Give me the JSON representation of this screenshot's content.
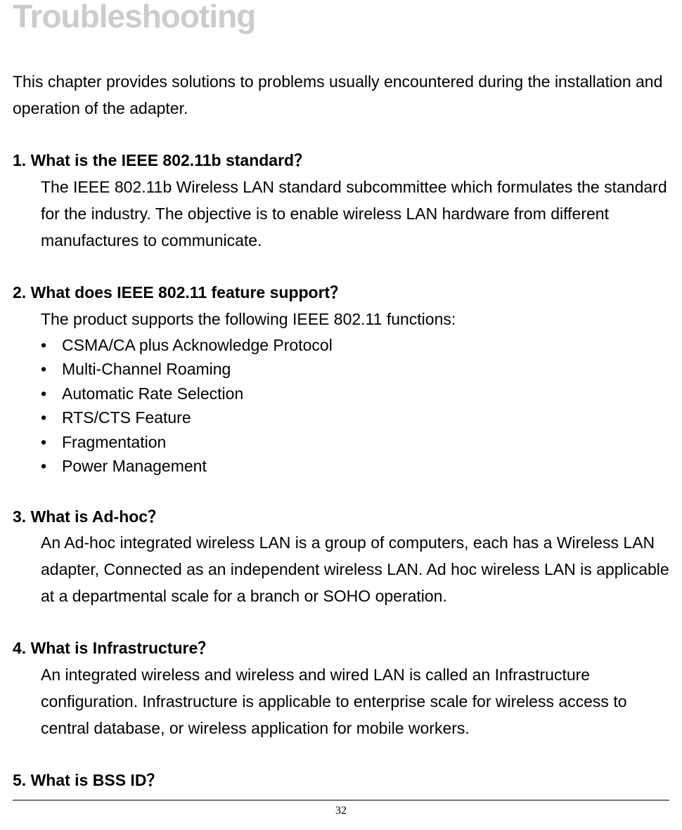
{
  "heading": "Troubleshooting",
  "intro": "This chapter provides solutions to problems usually encountered during the installation and operation of the adapter.",
  "q1": {
    "question": "1. What is the IEEE 802.11b standard？",
    "answer": "The IEEE 802.11b Wireless LAN standard subcommittee which formulates the standard for the industry. The objective is to enable wireless LAN hardware from different manufactures to communicate."
  },
  "q2": {
    "question": "2. What does IEEE 802.11 feature support？",
    "intro": "The product supports the following IEEE 802.11 functions:",
    "bullets": {
      "b1": "CSMA/CA plus Acknowledge Protocol",
      "b2": "Multi-Channel Roaming",
      "b3": "Automatic Rate Selection",
      "b4": "RTS/CTS Feature",
      "b5": "Fragmentation",
      "b6": "Power Management"
    }
  },
  "q3": {
    "question": "3. What is Ad-hoc？",
    "answer": "An Ad-hoc integrated wireless LAN is a group of computers, each has a Wireless LAN adapter, Connected as an independent wireless LAN. Ad hoc wireless LAN is applicable at a departmental scale for a branch or SOHO operation."
  },
  "q4": {
    "question": "4. What is Infrastructure？",
    "answer": "An integrated wireless and wireless and wired LAN is called an Infrastructure configuration. Infrastructure is applicable to enterprise scale for wireless access to central database, or wireless application for mobile workers."
  },
  "q5": {
    "question": "5. What is BSS ID？"
  },
  "pageNumber": "32",
  "colors": {
    "heading": "#cccccc",
    "text": "#000000",
    "background": "#ffffff",
    "footerBorder": "#000000"
  }
}
